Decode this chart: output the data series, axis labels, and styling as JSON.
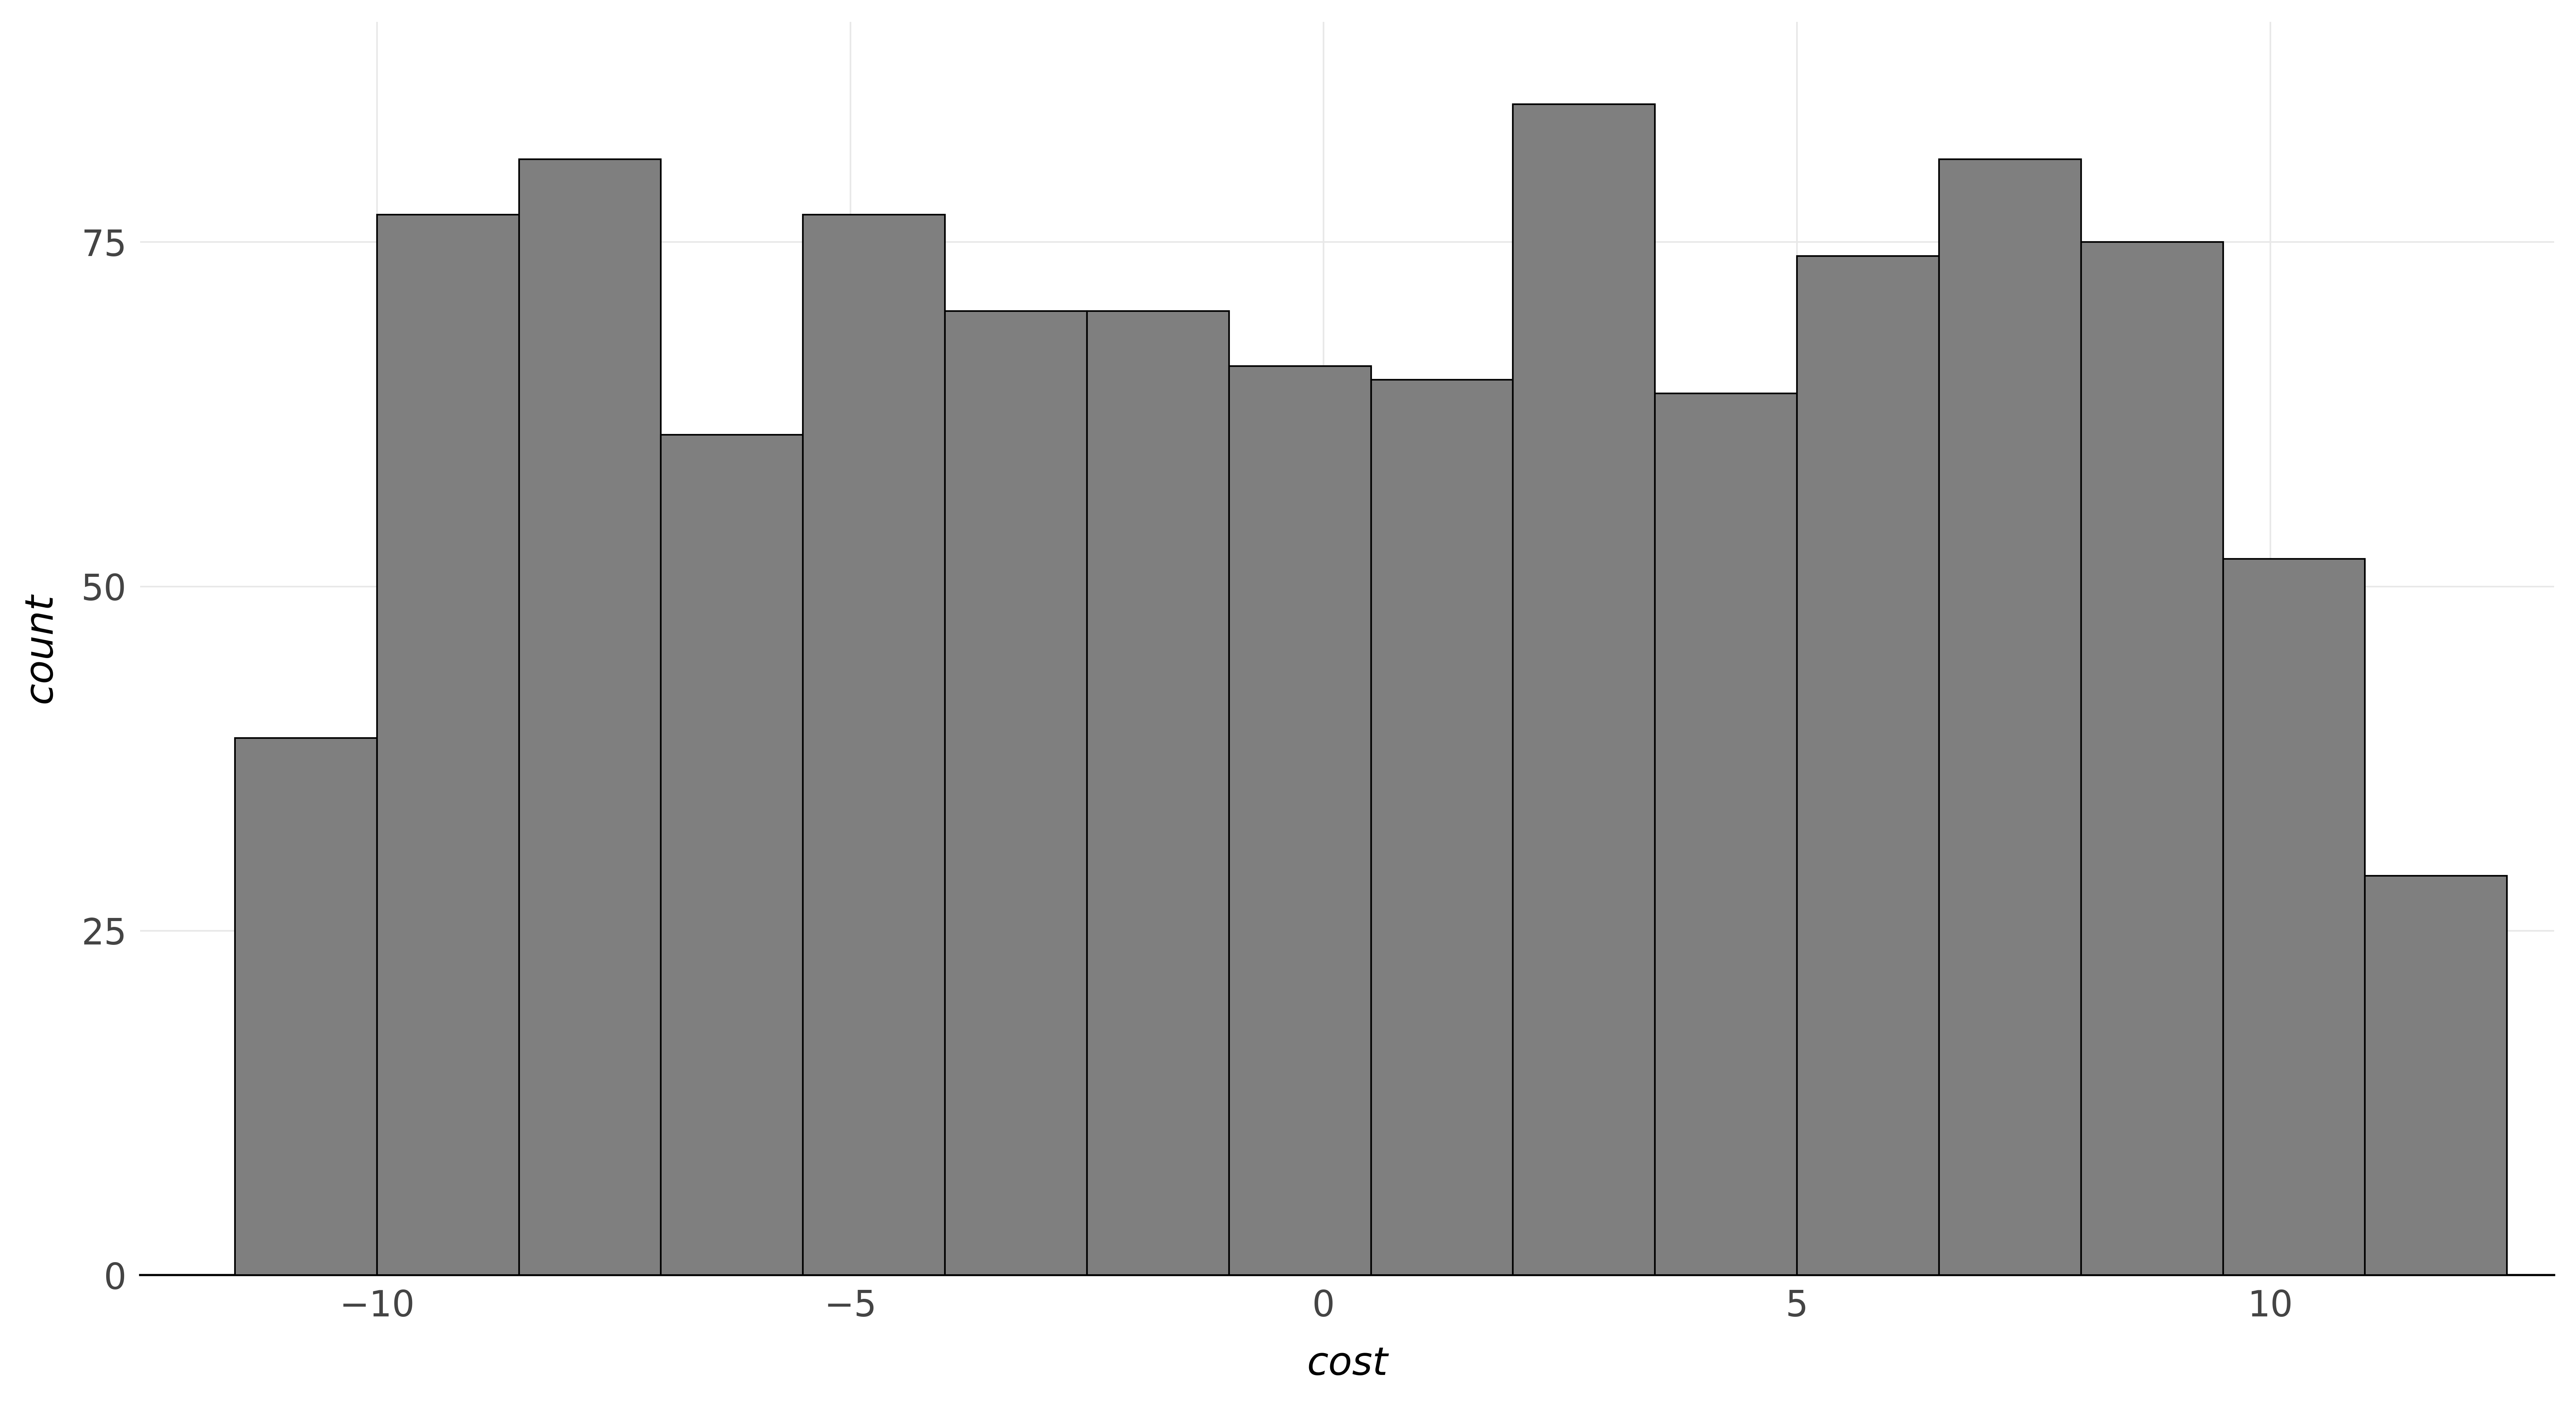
{
  "title": "",
  "xlabel": "cost",
  "ylabel": "count",
  "bar_color": "#7f7f7f",
  "bar_edgecolor": "#000000",
  "background_color": "#ffffff",
  "panel_background": "#ffffff",
  "grid_color": "#e8e8e8",
  "xlim": [
    -12.5,
    13.0
  ],
  "ylim": [
    0,
    91
  ],
  "yticks": [
    0,
    25,
    50,
    75
  ],
  "xticks": [
    -10,
    -5,
    0,
    5,
    10
  ],
  "bar_edges": [
    -11.5,
    -10.0,
    -8.5,
    -7.0,
    -5.5,
    -4.0,
    -2.5,
    -1.0,
    0.5,
    2.0,
    3.5,
    5.0,
    6.5,
    8.0,
    9.5,
    11.0,
    12.5
  ],
  "bar_heights": [
    39,
    77,
    81,
    61,
    77,
    70,
    70,
    66,
    65,
    85,
    64,
    74,
    81,
    75,
    52,
    29
  ],
  "bar_linewidth": 3.0,
  "xlabel_fontsize": 72,
  "ylabel_fontsize": 72,
  "tick_fontsize": 66,
  "tick_color": "#444444",
  "label_color": "#000000",
  "spine_linewidth": 4.0
}
